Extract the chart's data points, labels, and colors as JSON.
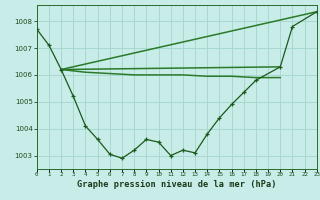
{
  "bg_color": "#c8ece8",
  "grid_color": "#a8d8d0",
  "line_color": "#1a5a1a",
  "line_color2": "#2a7a2a",
  "title": "Graphe pression niveau de la mer (hPa)",
  "xlim": [
    0,
    23
  ],
  "ylim": [
    1002.5,
    1008.6
  ],
  "yticks": [
    1003,
    1004,
    1005,
    1006,
    1007,
    1008
  ],
  "xticks": [
    0,
    1,
    2,
    3,
    4,
    5,
    6,
    7,
    8,
    9,
    10,
    11,
    12,
    13,
    14,
    15,
    16,
    17,
    18,
    19,
    20,
    21,
    22,
    23
  ],
  "series1_x": [
    0,
    1,
    2,
    3,
    4,
    5,
    6,
    7,
    8,
    9,
    10,
    11,
    12,
    13,
    14,
    15,
    16,
    17,
    18,
    20,
    21,
    23
  ],
  "series1_y": [
    1007.7,
    1007.1,
    1006.2,
    1005.2,
    1004.1,
    1003.6,
    1003.05,
    1002.9,
    1003.2,
    1003.6,
    1003.5,
    1003.0,
    1003.2,
    1003.1,
    1003.8,
    1004.4,
    1004.9,
    1005.35,
    1005.8,
    1006.3,
    1007.8,
    1008.35
  ],
  "series2_x": [
    2,
    4,
    6,
    8,
    10,
    12,
    14,
    16,
    18,
    20
  ],
  "series2_y": [
    1006.2,
    1006.1,
    1006.05,
    1006.0,
    1006.0,
    1006.0,
    1005.95,
    1005.95,
    1005.9,
    1005.9
  ],
  "series3_x": [
    2,
    20
  ],
  "series3_y": [
    1006.2,
    1006.3
  ],
  "series4_x": [
    2,
    23
  ],
  "series4_y": [
    1006.2,
    1008.35
  ]
}
